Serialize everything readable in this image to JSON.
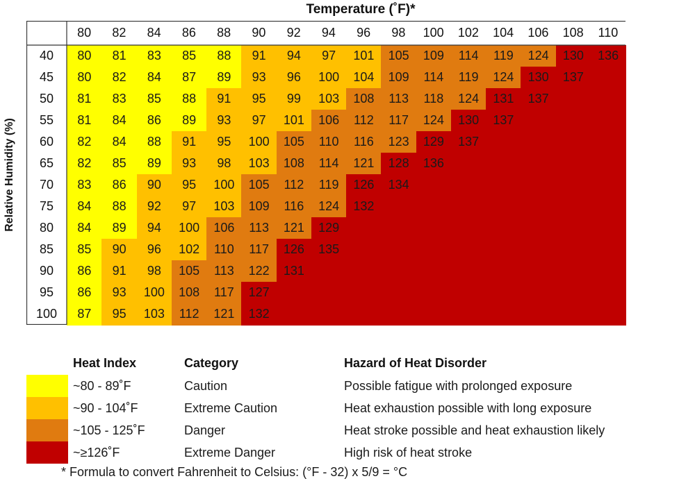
{
  "chart_data": {
    "type": "heatmap",
    "title": "Temperature (˚F)*",
    "xlabel": "Temperature (˚F)*",
    "ylabel": "Relative Humidity (%)",
    "x": [
      80,
      82,
      84,
      86,
      88,
      90,
      92,
      94,
      96,
      98,
      100,
      102,
      104,
      106,
      108,
      110
    ],
    "y": [
      40,
      45,
      50,
      55,
      60,
      65,
      70,
      75,
      80,
      85,
      90,
      95,
      100
    ],
    "values": [
      [
        80,
        81,
        83,
        85,
        88,
        91,
        94,
        97,
        101,
        105,
        109,
        114,
        119,
        124,
        130,
        136
      ],
      [
        80,
        82,
        84,
        87,
        89,
        93,
        96,
        100,
        104,
        109,
        114,
        119,
        124,
        130,
        137,
        null
      ],
      [
        81,
        83,
        85,
        88,
        91,
        95,
        99,
        103,
        108,
        113,
        118,
        124,
        131,
        137,
        null,
        null
      ],
      [
        81,
        84,
        86,
        89,
        93,
        97,
        101,
        106,
        112,
        117,
        124,
        130,
        137,
        null,
        null,
        null
      ],
      [
        82,
        84,
        88,
        91,
        95,
        100,
        105,
        110,
        116,
        123,
        129,
        137,
        null,
        null,
        null,
        null
      ],
      [
        82,
        85,
        89,
        93,
        98,
        103,
        108,
        114,
        121,
        128,
        136,
        null,
        null,
        null,
        null,
        null
      ],
      [
        83,
        86,
        90,
        95,
        100,
        105,
        112,
        119,
        126,
        134,
        null,
        null,
        null,
        null,
        null,
        null
      ],
      [
        84,
        88,
        92,
        97,
        103,
        109,
        116,
        124,
        132,
        null,
        null,
        null,
        null,
        null,
        null,
        null
      ],
      [
        84,
        89,
        94,
        100,
        106,
        113,
        121,
        129,
        null,
        null,
        null,
        null,
        null,
        null,
        null,
        null
      ],
      [
        85,
        90,
        96,
        102,
        110,
        117,
        126,
        135,
        null,
        null,
        null,
        null,
        null,
        null,
        null,
        null
      ],
      [
        86,
        91,
        98,
        105,
        113,
        122,
        131,
        null,
        null,
        null,
        null,
        null,
        null,
        null,
        null,
        null
      ],
      [
        86,
        93,
        100,
        108,
        117,
        127,
        null,
        null,
        null,
        null,
        null,
        null,
        null,
        null,
        null,
        null
      ],
      [
        87,
        95,
        103,
        112,
        121,
        132,
        null,
        null,
        null,
        null,
        null,
        null,
        null,
        null,
        null,
        null
      ]
    ],
    "colors": {
      "caution": "#ffff00",
      "extreme_caution": "#ffc000",
      "danger": "#e07b10",
      "extreme_danger": "#c00000"
    },
    "thresholds": [
      90,
      105,
      126
    ]
  },
  "legend": {
    "headers": {
      "heat_index": "Heat Index",
      "category": "Category",
      "hazard": "Hazard of Heat Disorder"
    },
    "rows": [
      {
        "range": "~80 - 89˚F",
        "category": "Caution",
        "hazard": "Possible fatigue with prolonged exposure",
        "color": "#ffff00"
      },
      {
        "range": "~90 - 104˚F",
        "category": "Extreme Caution",
        "hazard": "Heat exhaustion possible with long exposure",
        "color": "#ffc000"
      },
      {
        "range": "~105 - 125˚F",
        "category": "Danger",
        "hazard": "Heat stroke possible and heat exhaustion likely",
        "color": "#e07b10"
      },
      {
        "range": "~≥126˚F",
        "category": "Extreme Danger",
        "hazard": "High risk of heat stroke",
        "color": "#c00000"
      }
    ]
  },
  "footnote": "* Formula to convert Fahrenheit to Celsius: (°F - 32)  x  5/9 = °C"
}
